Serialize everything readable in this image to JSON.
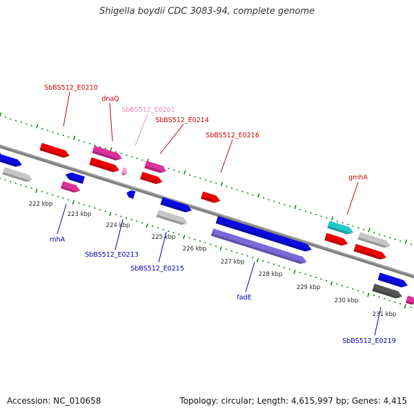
{
  "title": "Shigella boydii CDC 3083-94, complete genome",
  "footer": {
    "accession": "Accession: NC_010658",
    "summary": "Topology: circular; Length: 4,615,997 bp; Genes: 4,415"
  },
  "colors": {
    "backbone": "#808080",
    "tick": "#1a7f1a",
    "label_top": "#cc0000",
    "label_top_faded": "#ee88bb",
    "label_bottom": "#0000aa",
    "red": "#ee0000",
    "pink": "#e0309a",
    "blue": "#0a0ae0",
    "lightgray": "#c6c6c6",
    "darkgray": "#555555",
    "cyan": "#22c8c8",
    "violet": "#7a6ad8",
    "lightpink": "#f0a0cc"
  },
  "kbp_labels": [
    "222 kbp",
    "223 kbp",
    "224 kbp",
    "225 kbp",
    "226 kbp",
    "227 kbp",
    "228 kbp",
    "229 kbp",
    "230 kbp",
    "231 kbp"
  ],
  "gene_labels_top": [
    "SbBS512_E0210",
    "dnaQ",
    "SbBS512_E0201",
    "SbBS512_E0214",
    "SbBS512_E0216",
    "gmhA"
  ],
  "gene_labels_bottom": [
    "rnhA",
    "SbBS512_E0213",
    "SbBS512_E0215",
    "fadE",
    "SbBS512_E0219"
  ]
}
